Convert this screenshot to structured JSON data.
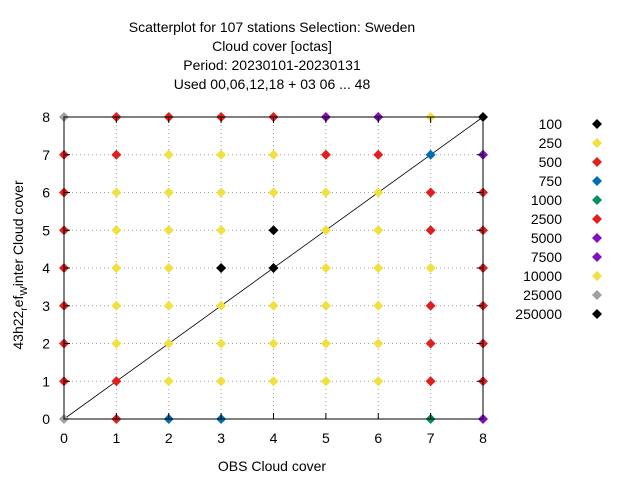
{
  "chart_data": {
    "type": "scatter",
    "title": [
      "Scatterplot for  107 stations Selection: Sweden",
      "Cloud cover [octas]",
      "Period: 20230101-20230131",
      "Used  00,06,12,18  + 03 06 ... 48"
    ],
    "xlabel": "OBS Cloud cover",
    "ylabel": {
      "prefix": "43h22",
      "sub1": "r",
      "mid": "ef",
      "sub2": "W",
      "suffix": "inter Cloud cover"
    },
    "xlim": [
      0,
      8
    ],
    "ylim": [
      0,
      8
    ],
    "xticks": [
      0,
      1,
      2,
      3,
      4,
      5,
      6,
      7,
      8
    ],
    "yticks": [
      0,
      1,
      2,
      3,
      4,
      5,
      6,
      7,
      8
    ],
    "grid": true,
    "diagonal": true,
    "legend": [
      {
        "label": "100",
        "color": "#000000"
      },
      {
        "label": "250",
        "color": "#f0e040"
      },
      {
        "label": "500",
        "color": "#e02020"
      },
      {
        "label": "750",
        "color": "#0070b0"
      },
      {
        "label": "1000",
        "color": "#009060"
      },
      {
        "label": "2500",
        "color": "#e02020"
      },
      {
        "label": "5000",
        "color": "#8010c0"
      },
      {
        "label": "7500",
        "color": "#8010c0"
      },
      {
        "label": "10000",
        "color": "#f0e040"
      },
      {
        "label": "25000",
        "color": "#a0a0a0"
      },
      {
        "label": "250000",
        "color": "#000000"
      }
    ],
    "points": [
      {
        "x": 0,
        "y": 0,
        "color": "#a0a0a0"
      },
      {
        "x": 0,
        "y": 1,
        "color": "#e02020"
      },
      {
        "x": 0,
        "y": 2,
        "color": "#e02020"
      },
      {
        "x": 0,
        "y": 3,
        "color": "#e02020"
      },
      {
        "x": 0,
        "y": 4,
        "color": "#e02020"
      },
      {
        "x": 0,
        "y": 5,
        "color": "#e02020"
      },
      {
        "x": 0,
        "y": 6,
        "color": "#e02020"
      },
      {
        "x": 0,
        "y": 7,
        "color": "#e02020"
      },
      {
        "x": 0,
        "y": 8,
        "color": "#a0a0a0"
      },
      {
        "x": 1,
        "y": 0,
        "color": "#e02020"
      },
      {
        "x": 1,
        "y": 1,
        "color": "#e02020"
      },
      {
        "x": 1,
        "y": 2,
        "color": "#f0e040"
      },
      {
        "x": 1,
        "y": 3,
        "color": "#f0e040"
      },
      {
        "x": 1,
        "y": 4,
        "color": "#f0e040"
      },
      {
        "x": 1,
        "y": 5,
        "color": "#f0e040"
      },
      {
        "x": 1,
        "y": 6,
        "color": "#f0e040"
      },
      {
        "x": 1,
        "y": 7,
        "color": "#e02020"
      },
      {
        "x": 1,
        "y": 8,
        "color": "#e02020"
      },
      {
        "x": 2,
        "y": 0,
        "color": "#0070b0"
      },
      {
        "x": 2,
        "y": 1,
        "color": "#f0e040"
      },
      {
        "x": 2,
        "y": 2,
        "color": "#f0e040"
      },
      {
        "x": 2,
        "y": 3,
        "color": "#f0e040"
      },
      {
        "x": 2,
        "y": 4,
        "color": "#f0e040"
      },
      {
        "x": 2,
        "y": 5,
        "color": "#f0e040"
      },
      {
        "x": 2,
        "y": 6,
        "color": "#f0e040"
      },
      {
        "x": 2,
        "y": 7,
        "color": "#f0e040"
      },
      {
        "x": 2,
        "y": 8,
        "color": "#e02020"
      },
      {
        "x": 3,
        "y": 0,
        "color": "#0070b0"
      },
      {
        "x": 3,
        "y": 1,
        "color": "#f0e040"
      },
      {
        "x": 3,
        "y": 2,
        "color": "#f0e040"
      },
      {
        "x": 3,
        "y": 3,
        "color": "#f0e040"
      },
      {
        "x": 3,
        "y": 4,
        "color": "#000000"
      },
      {
        "x": 3,
        "y": 5,
        "color": "#f0e040"
      },
      {
        "x": 3,
        "y": 6,
        "color": "#f0e040"
      },
      {
        "x": 3,
        "y": 7,
        "color": "#f0e040"
      },
      {
        "x": 3,
        "y": 8,
        "color": "#e02020"
      },
      {
        "x": 4,
        "y": 1,
        "color": "#f0e040"
      },
      {
        "x": 4,
        "y": 2,
        "color": "#f0e040"
      },
      {
        "x": 4,
        "y": 3,
        "color": "#f0e040"
      },
      {
        "x": 4,
        "y": 4,
        "color": "#000000"
      },
      {
        "x": 4,
        "y": 5,
        "color": "#000000"
      },
      {
        "x": 4,
        "y": 6,
        "color": "#f0e040"
      },
      {
        "x": 4,
        "y": 7,
        "color": "#f0e040"
      },
      {
        "x": 4,
        "y": 8,
        "color": "#e02020"
      },
      {
        "x": 5,
        "y": 1,
        "color": "#f0e040"
      },
      {
        "x": 5,
        "y": 2,
        "color": "#f0e040"
      },
      {
        "x": 5,
        "y": 3,
        "color": "#f0e040"
      },
      {
        "x": 5,
        "y": 4,
        "color": "#f0e040"
      },
      {
        "x": 5,
        "y": 5,
        "color": "#f0e040"
      },
      {
        "x": 5,
        "y": 6,
        "color": "#f0e040"
      },
      {
        "x": 5,
        "y": 7,
        "color": "#e02020"
      },
      {
        "x": 5,
        "y": 8,
        "color": "#8010c0"
      },
      {
        "x": 6,
        "y": 1,
        "color": "#f0e040"
      },
      {
        "x": 6,
        "y": 2,
        "color": "#f0e040"
      },
      {
        "x": 6,
        "y": 3,
        "color": "#f0e040"
      },
      {
        "x": 6,
        "y": 4,
        "color": "#f0e040"
      },
      {
        "x": 6,
        "y": 5,
        "color": "#f0e040"
      },
      {
        "x": 6,
        "y": 6,
        "color": "#f0e040"
      },
      {
        "x": 6,
        "y": 7,
        "color": "#e02020"
      },
      {
        "x": 6,
        "y": 8,
        "color": "#8010c0"
      },
      {
        "x": 7,
        "y": 0,
        "color": "#009060"
      },
      {
        "x": 7,
        "y": 1,
        "color": "#e02020"
      },
      {
        "x": 7,
        "y": 2,
        "color": "#e02020"
      },
      {
        "x": 7,
        "y": 3,
        "color": "#e02020"
      },
      {
        "x": 7,
        "y": 4,
        "color": "#f0e040"
      },
      {
        "x": 7,
        "y": 5,
        "color": "#e02020"
      },
      {
        "x": 7,
        "y": 6,
        "color": "#e02020"
      },
      {
        "x": 7,
        "y": 7,
        "color": "#0070b0"
      },
      {
        "x": 7,
        "y": 8,
        "color": "#f0e040"
      },
      {
        "x": 8,
        "y": 0,
        "color": "#8010c0"
      },
      {
        "x": 8,
        "y": 1,
        "color": "#e02020"
      },
      {
        "x": 8,
        "y": 2,
        "color": "#e02020"
      },
      {
        "x": 8,
        "y": 3,
        "color": "#e02020"
      },
      {
        "x": 8,
        "y": 4,
        "color": "#e02020"
      },
      {
        "x": 8,
        "y": 5,
        "color": "#e02020"
      },
      {
        "x": 8,
        "y": 6,
        "color": "#e02020"
      },
      {
        "x": 8,
        "y": 7,
        "color": "#8010c0"
      },
      {
        "x": 8,
        "y": 8,
        "color": "#000000"
      }
    ]
  }
}
